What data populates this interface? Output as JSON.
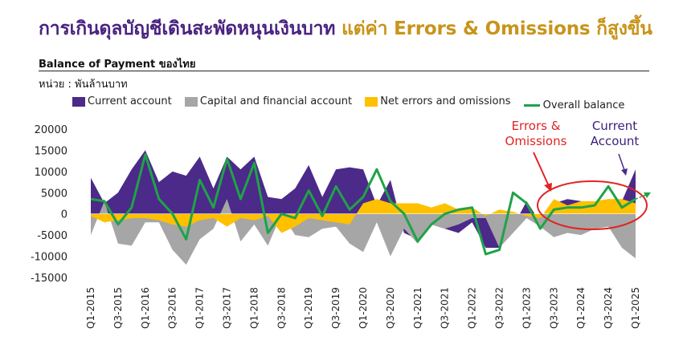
{
  "title": {
    "part1": "การเกินดุลบัญชีเดินสะพัดหนุนเงินบาท",
    "part2": "แต่ค่า Errors & Omissions ก็สูงขึ้น"
  },
  "subtitle": "Balance of Payment ของไทย",
  "unit": "หน่วย : พันล้านบาท",
  "annotations": {
    "errors": "Errors & Omissions",
    "current": "Current Account"
  },
  "colors": {
    "current": "#4b2a8a",
    "capital": "#a6a6a6",
    "errors": "#ffc000",
    "overall": "#1fa346",
    "ellipse": "#e02424"
  },
  "chart_data": {
    "type": "area",
    "legend_position": "top",
    "grid": false,
    "ylim": [
      -15000,
      20000
    ],
    "yticks": [
      20000,
      15000,
      10000,
      5000,
      0,
      -5000,
      -10000,
      -15000
    ],
    "x": [
      "Q1-2015",
      "Q2-2015",
      "Q3-2015",
      "Q4-2015",
      "Q1-2016",
      "Q2-2016",
      "Q3-2016",
      "Q4-2016",
      "Q1-2017",
      "Q2-2017",
      "Q3-2017",
      "Q4-2017",
      "Q1-2018",
      "Q2-2018",
      "Q3-2018",
      "Q4-2018",
      "Q1-2019",
      "Q2-2019",
      "Q3-2019",
      "Q4-2019",
      "Q1-2020",
      "Q2-2020",
      "Q3-2020",
      "Q4-2020",
      "Q1-2021",
      "Q2-2021",
      "Q3-2021",
      "Q4-2021",
      "Q1-2022",
      "Q2-2022",
      "Q3-2022",
      "Q4-2022",
      "Q1-2023",
      "Q2-2023",
      "Q3-2023",
      "Q4-2023",
      "Q1-2024",
      "Q2-2024",
      "Q3-2024",
      "Q4-2024",
      "Q1-2025"
    ],
    "xtick_labels": [
      "Q1-2015",
      "",
      "Q3-2015",
      "",
      "Q1-2016",
      "",
      "Q3-2016",
      "",
      "Q1-2017",
      "",
      "Q3-2017",
      "",
      "Q1-2018",
      "",
      "Q3-2018",
      "",
      "Q1-2019",
      "",
      "Q3-2019",
      "",
      "Q1-2020",
      "",
      "Q3-2020",
      "",
      "Q1-2021",
      "",
      "Q3-2021",
      "",
      "Q1-2022",
      "",
      "Q3-2022",
      "",
      "Q1-2023",
      "",
      "Q3-2023",
      "",
      "Q1-2024",
      "",
      "Q3-2024",
      "",
      "Q1-2025"
    ],
    "series": [
      {
        "name": "Current account",
        "values": [
          8500,
          2500,
          5000,
          10500,
          15000,
          7500,
          10000,
          9000,
          13500,
          6000,
          13500,
          10500,
          13500,
          4000,
          3500,
          6000,
          11500,
          4000,
          10500,
          11000,
          10500,
          2000,
          8000,
          -4500,
          -6000,
          -2500,
          -3500,
          -4500,
          -2000,
          -8000,
          -8000,
          -3000,
          3000,
          -2000,
          2500,
          3500,
          3000,
          2500,
          3500,
          3000,
          10500
        ]
      },
      {
        "name": "Capital and financial account",
        "values": [
          -5000,
          3000,
          -7000,
          -7500,
          -2000,
          -2000,
          -8500,
          -12000,
          -6000,
          -3500,
          3500,
          -6500,
          -2500,
          -7500,
          0,
          -5000,
          -5500,
          -3500,
          -3000,
          -7000,
          -9000,
          -2000,
          -10000,
          -3500,
          -7000,
          -2500,
          -3500,
          -2500,
          -1000,
          -1000,
          -8000,
          -4500,
          -1000,
          -3000,
          -5500,
          -4500,
          -5000,
          -3500,
          -3000,
          -8000,
          -10500
        ]
      },
      {
        "name": "Net errors and omissions",
        "values": [
          -500,
          -2000,
          -1500,
          -1000,
          -1000,
          -1500,
          -2500,
          -3000,
          -1500,
          -1000,
          -3000,
          -1000,
          -1500,
          -500,
          -4500,
          -3000,
          -1000,
          -1500,
          -2000,
          -2500,
          2500,
          3500,
          2500,
          2500,
          2500,
          1500,
          2500,
          1000,
          1500,
          -500,
          1000,
          500,
          -500,
          -1000,
          3500,
          2000,
          3000,
          3000,
          3500,
          3500,
          2500
        ]
      },
      {
        "name": "Overall balance",
        "values": [
          3500,
          3000,
          -2500,
          1500,
          14000,
          3500,
          0,
          -6000,
          8000,
          1500,
          13000,
          3500,
          12000,
          -4500,
          0,
          -1000,
          5500,
          -500,
          6500,
          1000,
          4000,
          10500,
          3000,
          0,
          -6500,
          -2500,
          0,
          1000,
          1500,
          -9500,
          -8500,
          5000,
          2500,
          -3500,
          1000,
          1500,
          1500,
          2000,
          6500,
          1500,
          3500
        ]
      }
    ]
  }
}
